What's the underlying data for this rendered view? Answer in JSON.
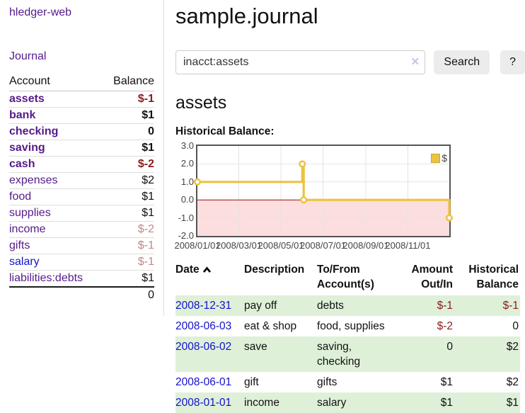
{
  "app": {
    "brand": "hledger-web"
  },
  "sidebar": {
    "journal_link": "Journal",
    "accounts": {
      "header": {
        "account": "Account",
        "balance": "Balance"
      },
      "rows": [
        {
          "name": "assets",
          "balance": "$-1"
        },
        {
          "name": "bank",
          "balance": "$1"
        },
        {
          "name": "checking",
          "balance": "0"
        },
        {
          "name": "saving",
          "balance": "$1"
        },
        {
          "name": "cash",
          "balance": "$-2"
        },
        {
          "name": "expenses",
          "balance": "$2"
        },
        {
          "name": "food",
          "balance": "$1"
        },
        {
          "name": "supplies",
          "balance": "$1"
        },
        {
          "name": "income",
          "balance": "$-2"
        },
        {
          "name": "gifts",
          "balance": "$-1"
        },
        {
          "name": "salary",
          "balance": "$-1"
        },
        {
          "name": "liabilities:debts",
          "balance": "$1"
        }
      ],
      "total": "0"
    }
  },
  "main": {
    "title": "sample.journal",
    "search": {
      "value": "inacct:assets",
      "clear": "×",
      "search_button": "Search",
      "help_button": "?"
    },
    "heading": "assets",
    "section_label": "Historical Balance:"
  },
  "chart_data": {
    "type": "line",
    "steps": true,
    "title": "Historical Balance:",
    "series": [
      {
        "name": "$",
        "color": "#edc240",
        "points": [
          [
            "2008-01-01",
            1
          ],
          [
            "2008-06-01",
            2
          ],
          [
            "2008-06-03",
            0
          ],
          [
            "2008-12-31",
            -1
          ]
        ]
      }
    ],
    "x_range": [
      "2008-01-01",
      "2008-12-31"
    ],
    "x_ticks": [
      "2008/01/01",
      "2008/03/01",
      "2008/05/01",
      "2008/07/01",
      "2008/09/01",
      "2008/11/01"
    ],
    "y_ticks": [
      3.0,
      2.0,
      1.0,
      0.0,
      -1.0,
      -2.0
    ],
    "ylim": [
      -2,
      3
    ],
    "grid": true,
    "legend_position": "top-right",
    "negative_region_color": "#fcdede",
    "zero_line_color": "#990b0b"
  },
  "register": {
    "headers": [
      "Date",
      "Description",
      "To/From Account(s)",
      "Amount Out/In",
      "Historical Balance"
    ],
    "rows": [
      {
        "date": "2008-12-31",
        "description": "pay off",
        "accounts": "debts",
        "amount": "$-1",
        "balance": "$-1"
      },
      {
        "date": "2008-06-03",
        "description": "eat & shop",
        "accounts": "food, supplies",
        "amount": "$-2",
        "balance": "0"
      },
      {
        "date": "2008-06-02",
        "description": "save",
        "accounts": "saving, checking",
        "amount": "0",
        "balance": "$2"
      },
      {
        "date": "2008-06-01",
        "description": "gift",
        "accounts": "gifts",
        "amount": "$1",
        "balance": "$2"
      },
      {
        "date": "2008-01-01",
        "description": "income",
        "accounts": "salary",
        "amount": "$1",
        "balance": "$1"
      }
    ]
  }
}
